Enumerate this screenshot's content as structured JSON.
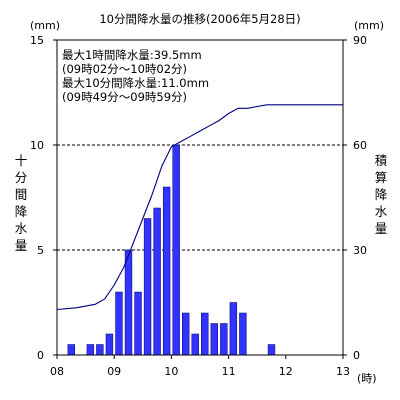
{
  "chart_data": {
    "type": "bar",
    "title": "10分間降水量の推移(2006年5月28日)",
    "left_unit": "(mm)",
    "right_unit": "(mm)",
    "x_unit": "(時)",
    "left_axis_label": "十分間降水量",
    "right_axis_label": "積算降水量",
    "x_ticks": [
      "08",
      "09",
      "10",
      "11",
      "12",
      "13"
    ],
    "y_ticks_left": [
      "0",
      "5",
      "10",
      "15"
    ],
    "y_ticks_right": [
      "0",
      "30",
      "60",
      "90"
    ],
    "ylim_left": [
      0,
      15
    ],
    "ylim_right": [
      0,
      90
    ],
    "xlim_hours": [
      8,
      13
    ],
    "gridlines_left": [
      5,
      10
    ],
    "annotations": [
      "最大1時間降水量:39.5mm",
      "(09時02分～10時02分)",
      "最大10分間降水量:11.0mm",
      "(09時49分～09時59分)"
    ],
    "series": [
      {
        "kind": "bar",
        "color": "#3333ff",
        "interval_start_minutes_after_08": [
          10,
          30,
          40,
          50,
          60,
          70,
          80,
          90,
          100,
          110,
          120,
          130,
          140,
          150,
          160,
          170,
          180,
          190,
          200,
          210,
          220
        ],
        "values": [
          0.5,
          0.5,
          0.5,
          1.0,
          3.0,
          5.0,
          3.0,
          6.5,
          7.0,
          8.0,
          10.0,
          2.0,
          1.0,
          2.0,
          1.5,
          1.5,
          2.5,
          2.0,
          0,
          0,
          0.5
        ]
      },
      {
        "kind": "line",
        "color": "#000080",
        "x": [
          "08:00",
          "08:20",
          "08:40",
          "08:50",
          "09:00",
          "09:10",
          "09:20",
          "09:30",
          "09:40",
          "09:50",
          "10:00",
          "10:10",
          "10:20",
          "10:30",
          "10:40",
          "10:50",
          "11:00",
          "11:10",
          "11:20",
          "11:30",
          "11:40",
          "12:00",
          "13:00"
        ],
        "values": [
          13.0,
          13.5,
          14.5,
          16.0,
          20.0,
          25.0,
          32.0,
          39.0,
          46.0,
          54.0,
          59.5,
          61.0,
          62.5,
          64.0,
          65.5,
          67.0,
          69.0,
          70.5,
          70.5,
          71.0,
          71.5,
          71.5,
          71.5
        ]
      }
    ]
  }
}
